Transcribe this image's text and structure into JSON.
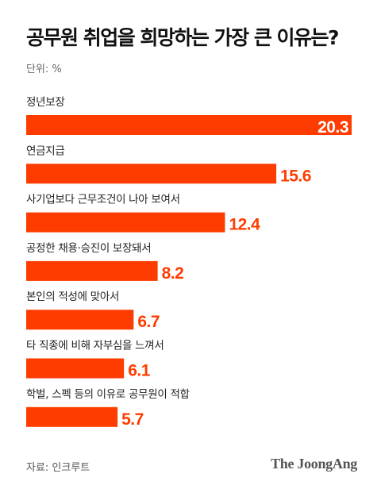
{
  "header": {
    "title": "공무원 취업을 희망하는 가장 큰 이유는?",
    "unit_label": "단위: %"
  },
  "footer": {
    "source": "자료: 인크루트",
    "brand": "The JoongAng"
  },
  "colors": {
    "bar": "#ff3c00",
    "value_inside": "#ffffff",
    "value_outside": "#ff3c00"
  },
  "chart_data": {
    "type": "bar",
    "orientation": "horizontal",
    "categories": [
      "정년보장",
      "연금지급",
      "사기업보다 근무조건이 나아 보여서",
      "공정한 채용·승진이 보장돼서",
      "본인의 적성에 맞아서",
      "타 직종에 비해 자부심을 느껴서",
      "학벌, 스펙 등의 이유로 공무원이 적합"
    ],
    "values": [
      20.3,
      15.6,
      12.4,
      8.2,
      6.7,
      6.1,
      5.7
    ],
    "value_labels": [
      "20.3",
      "15.6",
      "12.4",
      "8.2",
      "6.7",
      "6.1",
      "5.7"
    ],
    "unit": "%",
    "xlim": [
      0,
      20.3
    ],
    "grid": false,
    "legend": "none"
  }
}
